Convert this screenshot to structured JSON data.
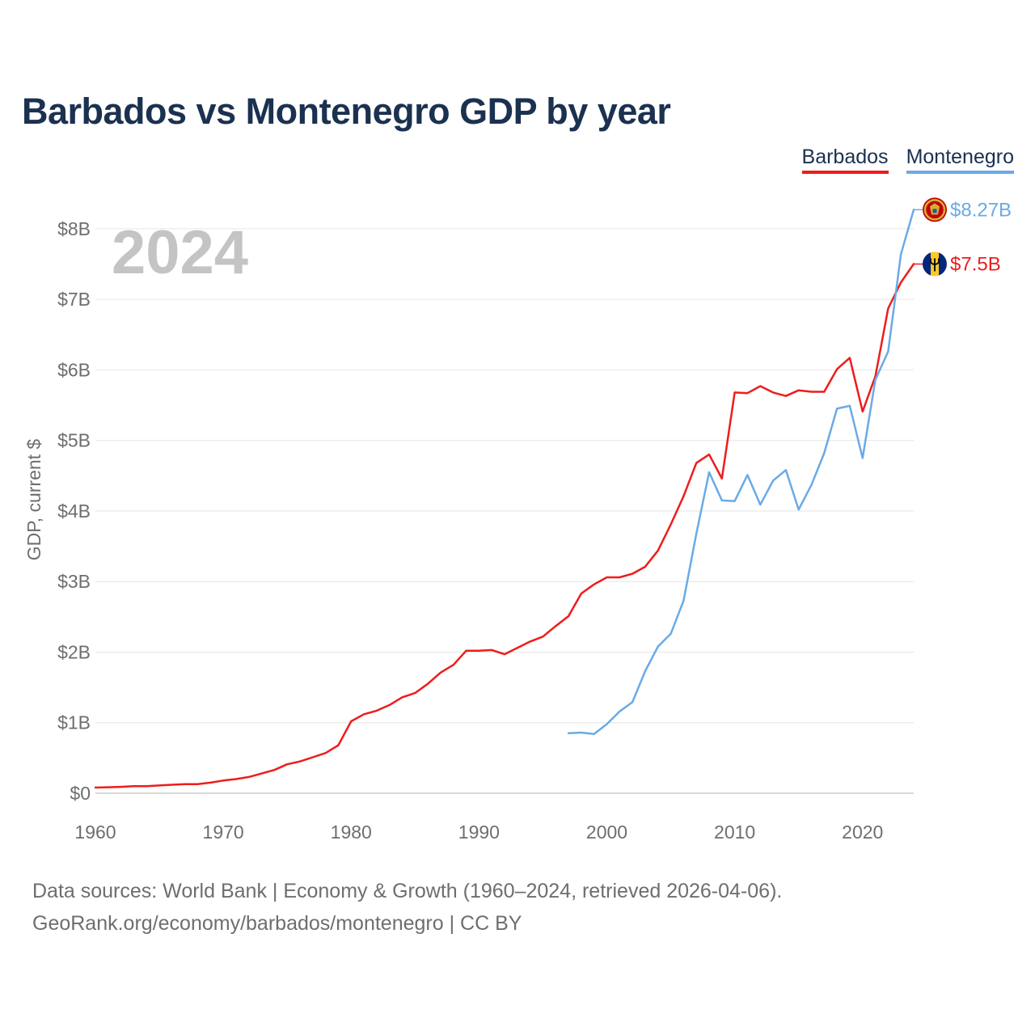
{
  "header": {
    "title": "Barbados vs Montenegro GDP by year"
  },
  "legend": {
    "items": [
      "Barbados",
      "Montenegro"
    ]
  },
  "footer": {
    "line1": "Data sources: World Bank | Economy & Growth (1960–2024, retrieved 2026-04-06).",
    "line2": "GeoRank.org/economy/barbados/montenegro | CC BY"
  },
  "chart_data": {
    "type": "line",
    "title": "Barbados vs Montenegro GDP by year",
    "year_label": "2024",
    "ylabel": "GDP, current $",
    "xlabel": "",
    "xlim": [
      1960,
      2024
    ],
    "ylim": [
      0,
      8.4
    ],
    "y_unit": "billions USD",
    "x_ticks": [
      1960,
      1970,
      1980,
      1990,
      2000,
      2010,
      2020
    ],
    "x_tick_labels": [
      "1960",
      "1970",
      "1980",
      "1990",
      "2000",
      "2010",
      "2020"
    ],
    "y_ticks": [
      0,
      1,
      2,
      3,
      4,
      5,
      6,
      7,
      8
    ],
    "y_tick_labels": [
      "$0",
      "$1B",
      "$2B",
      "$3B",
      "$4B",
      "$5B",
      "$6B",
      "$7B",
      "$8B"
    ],
    "grid": true,
    "series": [
      {
        "name": "Barbados",
        "color": "#ee1c1c",
        "end_label": "$7.5B",
        "flag_icon": "barbados-flag-icon",
        "x": [
          1960,
          1961,
          1962,
          1963,
          1964,
          1965,
          1966,
          1967,
          1968,
          1969,
          1970,
          1971,
          1972,
          1973,
          1974,
          1975,
          1976,
          1977,
          1978,
          1979,
          1980,
          1981,
          1982,
          1983,
          1984,
          1985,
          1986,
          1987,
          1988,
          1989,
          1990,
          1991,
          1992,
          1993,
          1994,
          1995,
          1996,
          1997,
          1998,
          1999,
          2000,
          2001,
          2002,
          2003,
          2004,
          2005,
          2006,
          2007,
          2008,
          2009,
          2010,
          2011,
          2012,
          2013,
          2014,
          2015,
          2016,
          2017,
          2018,
          2019,
          2020,
          2021,
          2022,
          2023,
          2024
        ],
        "values": [
          0.08,
          0.085,
          0.09,
          0.1,
          0.1,
          0.11,
          0.12,
          0.13,
          0.13,
          0.15,
          0.18,
          0.2,
          0.23,
          0.28,
          0.33,
          0.41,
          0.45,
          0.51,
          0.57,
          0.68,
          1.02,
          1.12,
          1.17,
          1.25,
          1.36,
          1.42,
          1.55,
          1.71,
          1.82,
          2.02,
          2.02,
          2.03,
          1.97,
          2.06,
          2.15,
          2.22,
          2.37,
          2.51,
          2.83,
          2.96,
          3.06,
          3.06,
          3.11,
          3.21,
          3.44,
          3.81,
          4.21,
          4.68,
          4.8,
          4.46,
          5.68,
          5.67,
          5.77,
          5.68,
          5.63,
          5.71,
          5.69,
          5.69,
          6.01,
          6.17,
          5.41,
          5.91,
          6.87,
          7.24,
          7.5
        ]
      },
      {
        "name": "Montenegro",
        "color": "#6aaae6",
        "end_label": "$8.27B",
        "flag_icon": "montenegro-flag-icon",
        "x": [
          1997,
          1998,
          1999,
          2000,
          2001,
          2002,
          2003,
          2004,
          2005,
          2006,
          2007,
          2008,
          2009,
          2010,
          2011,
          2012,
          2013,
          2014,
          2015,
          2016,
          2017,
          2018,
          2019,
          2020,
          2021,
          2022,
          2023,
          2024
        ],
        "values": [
          0.85,
          0.86,
          0.84,
          0.98,
          1.16,
          1.29,
          1.73,
          2.08,
          2.26,
          2.73,
          3.68,
          4.55,
          4.15,
          4.14,
          4.51,
          4.09,
          4.43,
          4.58,
          4.02,
          4.37,
          4.82,
          5.45,
          5.49,
          4.75,
          5.86,
          6.26,
          7.64,
          8.27
        ]
      }
    ]
  }
}
